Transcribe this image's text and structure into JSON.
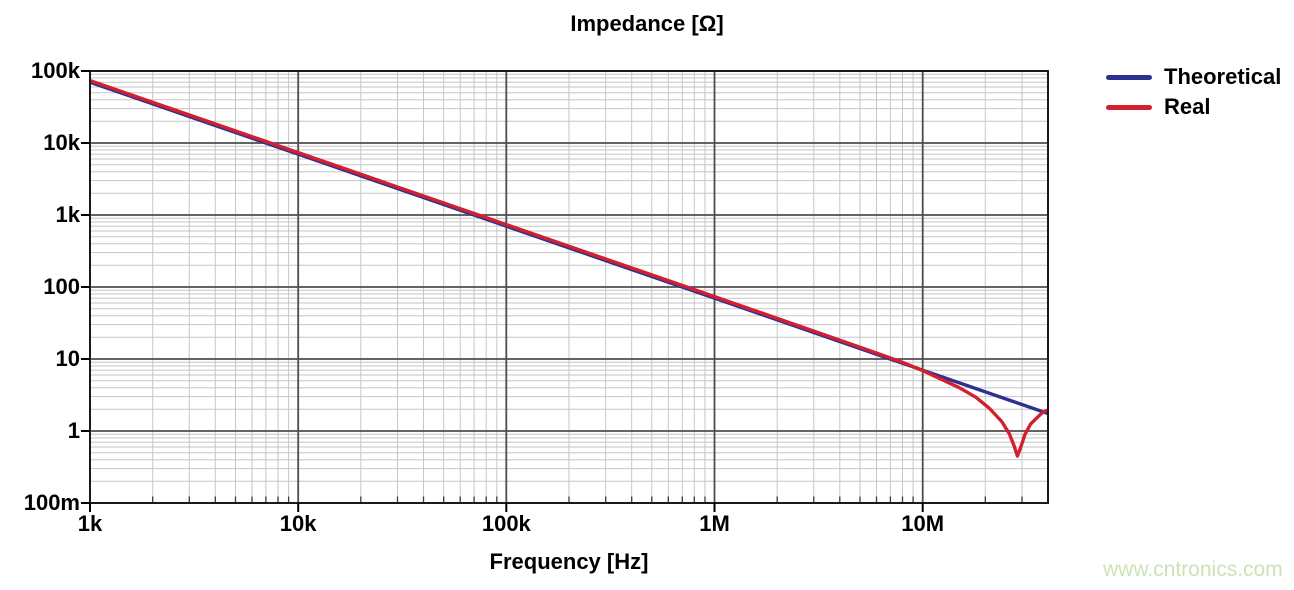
{
  "watermark": {
    "text": "www.cntronics.com",
    "color": "#cbe3b5"
  },
  "chart_data": {
    "type": "line",
    "title": "Impedance [Ω]",
    "xlabel": "Frequency [Hz]",
    "x_scale": "log",
    "y_scale": "log",
    "xlim": [
      1000,
      40000000
    ],
    "ylim": [
      0.1,
      100000
    ],
    "x_ticks": [
      {
        "value": 1000,
        "label": "1k"
      },
      {
        "value": 10000,
        "label": "10k"
      },
      {
        "value": 100000,
        "label": "100k"
      },
      {
        "value": 1000000,
        "label": "1M"
      },
      {
        "value": 10000000,
        "label": "10M"
      }
    ],
    "y_ticks": [
      {
        "value": 100000,
        "label": "100k"
      },
      {
        "value": 10000,
        "label": "10k"
      },
      {
        "value": 1000,
        "label": "1k"
      },
      {
        "value": 100,
        "label": "100"
      },
      {
        "value": 10,
        "label": "10"
      },
      {
        "value": 1,
        "label": "1"
      },
      {
        "value": 0.1,
        "label": "100m"
      }
    ],
    "grid": {
      "major": true,
      "minor": true
    },
    "legend": {
      "position": "top-right"
    },
    "series": [
      {
        "name": "Theoretical",
        "color": "#2e3192",
        "points": [
          [
            1000,
            70000
          ],
          [
            10000,
            7000
          ],
          [
            100000,
            700
          ],
          [
            1000000,
            70
          ],
          [
            10000000,
            7
          ],
          [
            40000000,
            1.75
          ]
        ]
      },
      {
        "name": "Real",
        "color": "#d2202f",
        "points": [
          [
            1000,
            73500
          ],
          [
            10000,
            7350
          ],
          [
            100000,
            735
          ],
          [
            1000000,
            73.5
          ],
          [
            3000000,
            24.4
          ],
          [
            5000000,
            14.6
          ],
          [
            8000000,
            9.0
          ],
          [
            10000000,
            6.9
          ],
          [
            12000000,
            5.4
          ],
          [
            15000000,
            4.0
          ],
          [
            18000000,
            2.95
          ],
          [
            21000000,
            2.05
          ],
          [
            24000000,
            1.35
          ],
          [
            26000000,
            0.93
          ],
          [
            27500000,
            0.62
          ],
          [
            28500000,
            0.45
          ],
          [
            29500000,
            0.58
          ],
          [
            31000000,
            0.9
          ],
          [
            33000000,
            1.25
          ],
          [
            36000000,
            1.6
          ],
          [
            38000000,
            1.85
          ],
          [
            40000000,
            1.95
          ]
        ]
      }
    ]
  }
}
